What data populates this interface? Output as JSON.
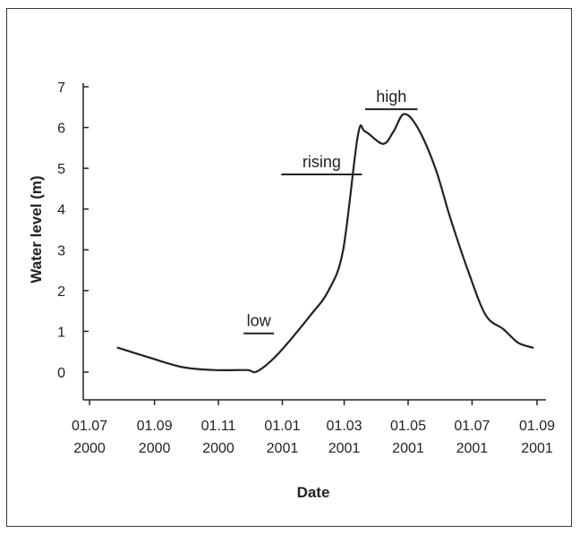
{
  "chart_data": {
    "type": "line",
    "title": "",
    "xlabel": "Date",
    "ylabel": "Water level (m)",
    "ylim": [
      0,
      7
    ],
    "xlim": [
      "2000-07-01",
      "2001-09-01"
    ],
    "grid": false,
    "y_ticks": [
      0,
      1,
      2,
      3,
      4,
      5,
      6,
      7
    ],
    "x_ticks": [
      {
        "date": "2000-07-01",
        "line1": "01.07",
        "line2": "2000"
      },
      {
        "date": "2000-09-01",
        "line1": "01.09",
        "line2": "2000"
      },
      {
        "date": "2000-11-01",
        "line1": "01.11",
        "line2": "2000"
      },
      {
        "date": "2001-01-01",
        "line1": "01.01",
        "line2": "2001"
      },
      {
        "date": "2001-03-01",
        "line1": "01.03",
        "line2": "2001"
      },
      {
        "date": "2001-05-01",
        "line1": "01.05",
        "line2": "2001"
      },
      {
        "date": "2001-07-01",
        "line1": "01.07",
        "line2": "2001"
      },
      {
        "date": "2001-09-01",
        "line1": "01.09",
        "line2": "2001"
      }
    ],
    "series": [
      {
        "points": [
          {
            "x": "2000-07-28",
            "y": 0.6
          },
          {
            "x": "2000-08-28",
            "y": 0.35
          },
          {
            "x": "2000-09-28",
            "y": 0.12
          },
          {
            "x": "2000-10-28",
            "y": 0.05
          },
          {
            "x": "2000-11-28",
            "y": 0.05
          },
          {
            "x": "2000-12-08",
            "y": 0.02
          },
          {
            "x": "2000-12-28",
            "y": 0.45
          },
          {
            "x": "2001-01-28",
            "y": 1.4
          },
          {
            "x": "2001-02-14",
            "y": 2.0
          },
          {
            "x": "2001-02-28",
            "y": 3.0
          },
          {
            "x": "2001-03-14",
            "y": 5.8
          },
          {
            "x": "2001-03-21",
            "y": 5.9
          },
          {
            "x": "2001-04-07",
            "y": 5.6
          },
          {
            "x": "2001-04-17",
            "y": 5.9
          },
          {
            "x": "2001-04-27",
            "y": 6.33
          },
          {
            "x": "2001-05-10",
            "y": 6.0
          },
          {
            "x": "2001-05-27",
            "y": 5.0
          },
          {
            "x": "2001-06-10",
            "y": 3.8
          },
          {
            "x": "2001-06-27",
            "y": 2.5
          },
          {
            "x": "2001-07-14",
            "y": 1.4
          },
          {
            "x": "2001-07-31",
            "y": 1.05
          },
          {
            "x": "2001-08-14",
            "y": 0.72
          },
          {
            "x": "2001-08-28",
            "y": 0.6
          }
        ]
      }
    ],
    "annotations": [
      {
        "text": "low",
        "x_start": "2000-11-25",
        "x_end": "2000-12-24",
        "y": 0.95
      },
      {
        "text": "rising",
        "x_start": "2000-12-31",
        "x_end": "2001-03-18",
        "y": 4.85
      },
      {
        "text": "high",
        "x_start": "2001-03-21",
        "x_end": "2001-05-10",
        "y": 6.45
      }
    ]
  }
}
